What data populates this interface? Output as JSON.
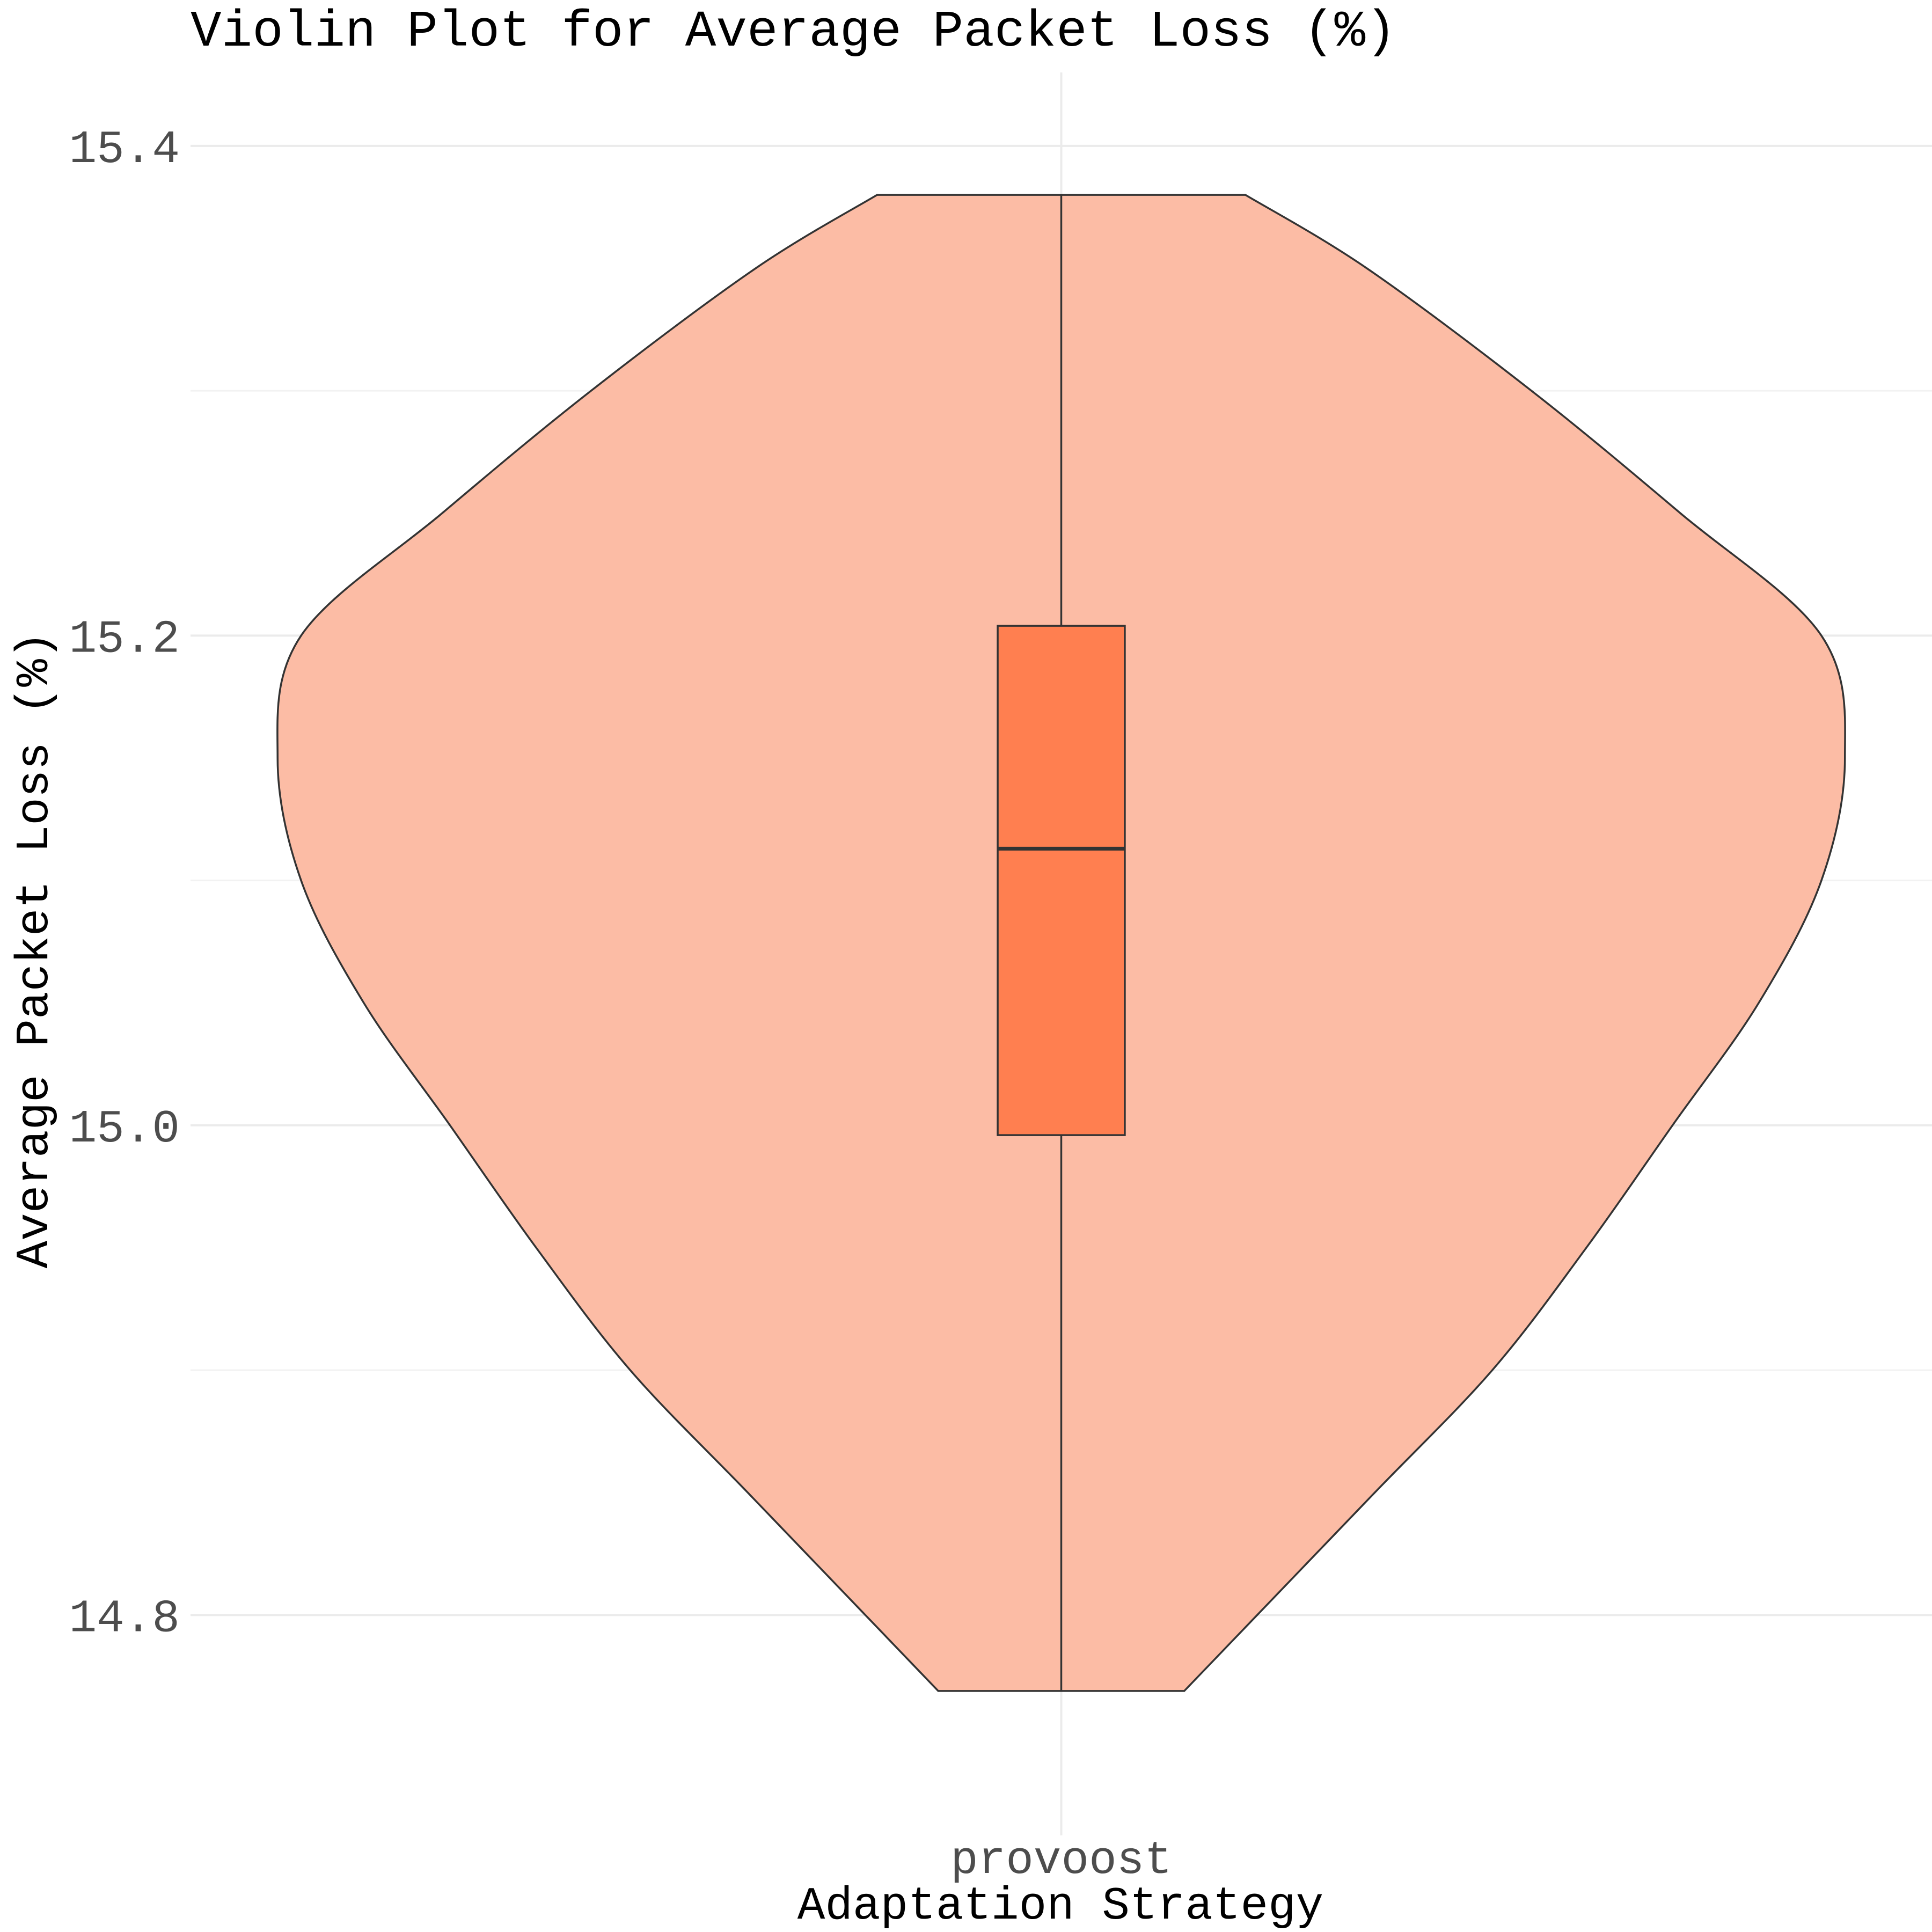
{
  "chart_data": {
    "type": "violin",
    "title": "Violin Plot for Average Packet Loss (%)",
    "xlabel": "Adaptation Strategy",
    "ylabel": "Average Packet Loss (%)",
    "categories": [
      "provoost"
    ],
    "ylim": [
      14.71,
      15.43
    ],
    "y_ticks": [
      14.8,
      15.0,
      15.2,
      15.4
    ],
    "y_tick_labels": [
      "14.8",
      "15.0",
      "15.2",
      "15.4"
    ],
    "grid": true,
    "legend": "none",
    "colors": {
      "violin_fill": "#fcbca5",
      "box_fill": "#ff7f50",
      "outline": "#333333"
    },
    "series": [
      {
        "category": "provoost",
        "min": 14.769,
        "max": 15.38,
        "box": {
          "q1": 14.996,
          "median": 15.113,
          "q3": 15.204,
          "whisker_low": 14.769,
          "whisker_high": 15.38
        },
        "density": [
          {
            "y": 14.769,
            "width": 0.157
          },
          {
            "y": 14.8,
            "width": 0.25
          },
          {
            "y": 14.85,
            "width": 0.4
          },
          {
            "y": 14.9,
            "width": 0.55
          },
          {
            "y": 14.95,
            "width": 0.67
          },
          {
            "y": 15.0,
            "width": 0.78
          },
          {
            "y": 15.05,
            "width": 0.89
          },
          {
            "y": 15.1,
            "width": 0.97
          },
          {
            "y": 15.15,
            "width": 1.0
          },
          {
            "y": 15.2,
            "width": 0.97
          },
          {
            "y": 15.25,
            "width": 0.79
          },
          {
            "y": 15.3,
            "width": 0.6
          },
          {
            "y": 15.35,
            "width": 0.39
          },
          {
            "y": 15.38,
            "width": 0.235
          }
        ]
      }
    ]
  }
}
